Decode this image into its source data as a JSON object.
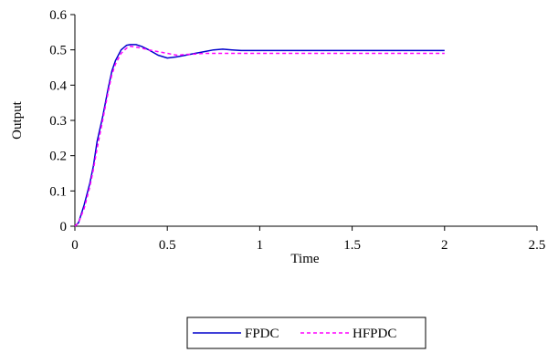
{
  "chart_data": {
    "type": "line",
    "title": "",
    "xlabel": "Time",
    "ylabel": "Output",
    "xlim": [
      0,
      2.5
    ],
    "ylim": [
      0,
      0.6
    ],
    "xticks": [
      0,
      0.5,
      1,
      1.5,
      2,
      2.5
    ],
    "xtick_labels": [
      "0",
      "0.5",
      "1",
      "1.5",
      "2",
      "2.5"
    ],
    "yticks": [
      0,
      0.1,
      0.2,
      0.3,
      0.4,
      0.5,
      0.6
    ],
    "ytick_labels": [
      "0",
      "0.1",
      "0.2",
      "0.3",
      "0.4",
      "0.5",
      "0.6"
    ],
    "grid": false,
    "legend_position": "bottom-center",
    "series": [
      {
        "name": "FPDC",
        "color": "#0000cc",
        "style": "solid",
        "x": [
          0,
          0.02,
          0.05,
          0.08,
          0.1,
          0.12,
          0.15,
          0.18,
          0.2,
          0.22,
          0.25,
          0.28,
          0.3,
          0.33,
          0.36,
          0.4,
          0.45,
          0.5,
          0.55,
          0.6,
          0.65,
          0.7,
          0.75,
          0.8,
          0.85,
          0.9,
          1.0,
          1.2,
          1.5,
          1.8,
          2.0
        ],
        "y": [
          0,
          0.01,
          0.06,
          0.12,
          0.17,
          0.24,
          0.31,
          0.39,
          0.44,
          0.47,
          0.5,
          0.513,
          0.515,
          0.515,
          0.51,
          0.5,
          0.485,
          0.477,
          0.48,
          0.485,
          0.49,
          0.495,
          0.5,
          0.502,
          0.5,
          0.498,
          0.498,
          0.498,
          0.498,
          0.498,
          0.498
        ]
      },
      {
        "name": "HFPDC",
        "color": "#ff00ff",
        "style": "dashed",
        "x": [
          0,
          0.02,
          0.05,
          0.08,
          0.1,
          0.12,
          0.15,
          0.18,
          0.2,
          0.22,
          0.25,
          0.28,
          0.3,
          0.33,
          0.36,
          0.4,
          0.45,
          0.5,
          0.55,
          0.6,
          0.65,
          0.7,
          0.8,
          0.9,
          1.0,
          1.2,
          1.5,
          1.8,
          2.0
        ],
        "y": [
          0,
          0.01,
          0.05,
          0.11,
          0.16,
          0.22,
          0.3,
          0.38,
          0.43,
          0.46,
          0.49,
          0.505,
          0.51,
          0.508,
          0.505,
          0.5,
          0.495,
          0.49,
          0.485,
          0.487,
          0.488,
          0.49,
          0.49,
          0.49,
          0.49,
          0.49,
          0.49,
          0.49,
          0.49
        ]
      }
    ]
  }
}
